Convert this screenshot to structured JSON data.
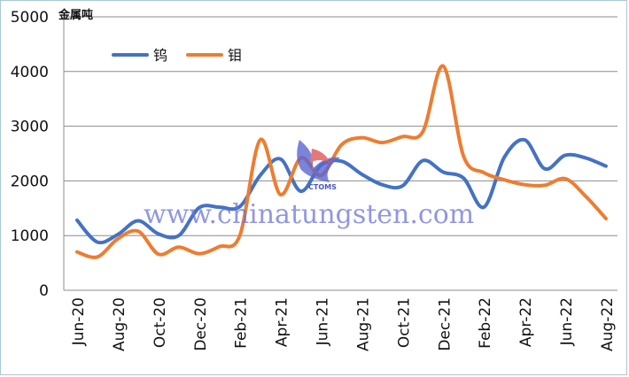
{
  "chart_data": {
    "type": "line",
    "title": "",
    "ylabel": "金属吨",
    "xlabel": "",
    "ylim": [
      0,
      5000
    ],
    "yticks": [
      0,
      1000,
      2000,
      3000,
      4000,
      5000
    ],
    "x_tick_labels": [
      "Jun-20",
      "Aug-20",
      "Oct-20",
      "Dec-20",
      "Feb-21",
      "Apr-21",
      "Jun-21",
      "Aug-21",
      "Oct-21",
      "Dec-21",
      "Feb-22",
      "Apr-22",
      "Jun-22",
      "Aug-22"
    ],
    "months": [
      "Jun-20",
      "Jul-20",
      "Aug-20",
      "Sep-20",
      "Oct-20",
      "Nov-20",
      "Dec-20",
      "Jan-21",
      "Feb-21",
      "Mar-21",
      "Apr-21",
      "May-21",
      "Jun-21",
      "Jul-21",
      "Aug-21",
      "Sep-21",
      "Oct-21",
      "Nov-21",
      "Dec-21",
      "Jan-22",
      "Feb-22",
      "Mar-22",
      "Apr-22",
      "May-22",
      "Jun-22",
      "Jul-22",
      "Aug-22"
    ],
    "series": [
      {
        "name": "钨",
        "color": "#4472c4",
        "values": [
          1280,
          880,
          1020,
          1270,
          1030,
          1000,
          1510,
          1520,
          1530,
          2100,
          2400,
          1810,
          2290,
          2360,
          2120,
          1930,
          1910,
          2370,
          2160,
          2050,
          1520,
          2430,
          2750,
          2220,
          2470,
          2420,
          2270
        ]
      },
      {
        "name": "钼",
        "color": "#ed7d31",
        "values": [
          700,
          610,
          940,
          1080,
          660,
          790,
          670,
          800,
          1000,
          2750,
          1750,
          2420,
          2100,
          2660,
          2790,
          2700,
          2810,
          2900,
          4100,
          2450,
          2150,
          2020,
          1930,
          1920,
          2040,
          1720,
          1310
        ]
      }
    ],
    "legend_position": "top-left",
    "grid": true
  },
  "watermark": {
    "text": "www.chinatungsten.com",
    "logo_text": "CTOMS"
  }
}
